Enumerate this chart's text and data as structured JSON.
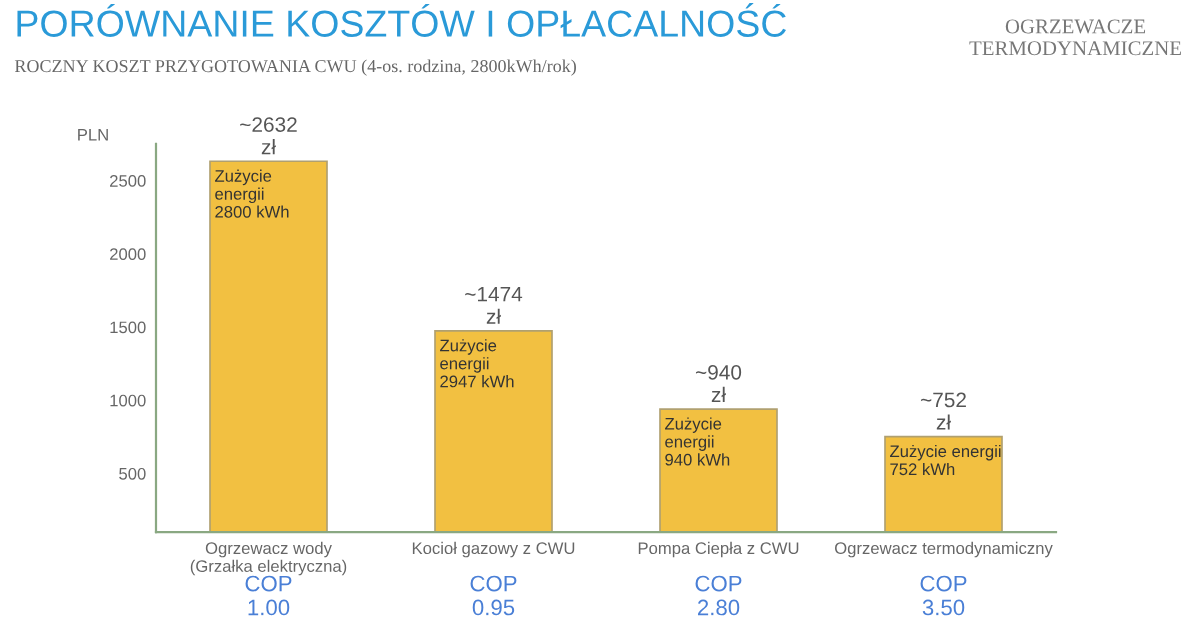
{
  "chart_data": {
    "type": "bar",
    "title": "PORÓWNANIE KOSZTÓW I OPŁACALNOŚĆ",
    "subtitle": "ROCZNY KOSZT PRZYGOTOWANIA CWU (4-os. rodzina, 2800kWh/rok)",
    "ylabel": "PLN",
    "categories": [
      "Ogrzewacz wody\n(Grzałka elektryczna)",
      "Kocioł gazowy z CWU",
      "Pompa Ciepła z CWU",
      "Ogrzewacz termodynamiczny"
    ],
    "values": [
      2632,
      1474,
      940,
      752
    ],
    "color": "#f2c041",
    "value_labels": [
      "~2632\nzł",
      "~1474\nzł",
      "~940\nzł",
      "~752\nzł"
    ],
    "ylim": [
      100,
      2750
    ],
    "yticks": [
      500,
      1000,
      1500,
      2000,
      2500
    ],
    "grid": false,
    "legend": false,
    "annotations": [
      "OGRZEWACZE\nTERMODYNAMICZNE",
      {
        "text": "Zużycie\nenergii\n2800 kWh",
        "x": "Ogrzewacz wody\n(Grzałka elektryczna)",
        "y": 2632
      },
      {
        "text": "Zużycie\nenergii\n2947 kWh",
        "x": "Kocioł gazowy z CWU",
        "y": 1474
      },
      {
        "text": "Zużycie\nenergii\n940 kWh",
        "x": "Pompa Ciepła z CWU",
        "y": 940
      },
      {
        "text": "Zużycie energii\n752 kWh",
        "x": "Ogrzewacz termodynamiczny",
        "y": 752
      },
      "COP\n1.00",
      "COP\n0.95",
      "COP\n2.80",
      "COP\n3.50"
    ]
  }
}
